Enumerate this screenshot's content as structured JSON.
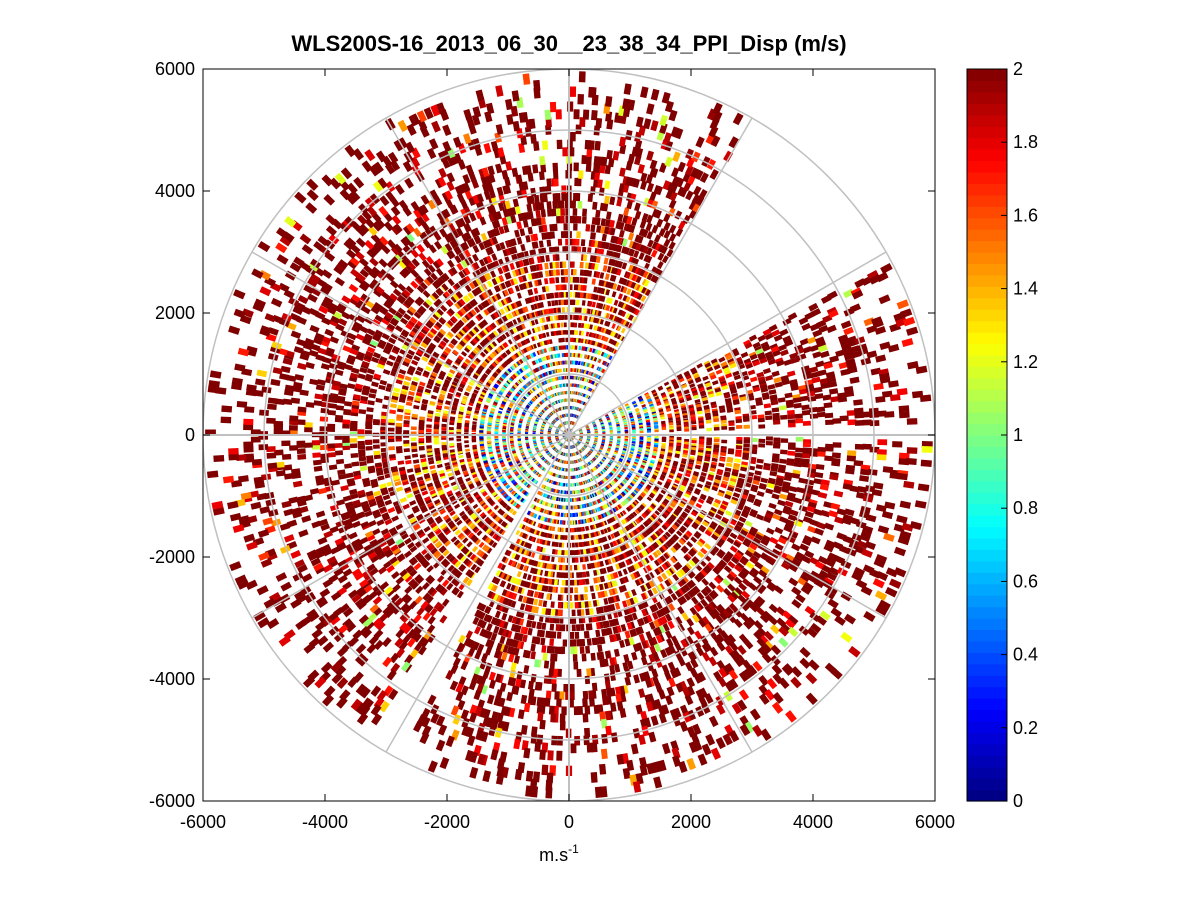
{
  "chart_data": {
    "type": "heatmap",
    "subtype": "polar PPI scan",
    "title": "WLS200S-16_2013_06_30__23_38_34_PPI_Disp (m/s)",
    "xlabel": "m.s",
    "xlabel_superscript": "-1",
    "ylabel": "",
    "xlim": [
      -6000,
      6000
    ],
    "ylim": [
      -6000,
      6000
    ],
    "xticks": [
      -6000,
      -4000,
      -2000,
      0,
      2000,
      4000,
      6000
    ],
    "yticks": [
      6000,
      4000,
      2000,
      0,
      -2000,
      -4000,
      -6000
    ],
    "xtick_labels": [
      "-6000",
      "-4000",
      "-2000",
      "0",
      "2000",
      "4000",
      "6000"
    ],
    "ytick_labels": [
      "6000",
      "4000",
      "2000",
      "0",
      "-2000",
      "-4000",
      "-6000"
    ],
    "polar_grid": {
      "ring_radii": [
        1000,
        2000,
        3000,
        4000,
        5000,
        6000
      ],
      "spoke_angles_deg": [
        0,
        30,
        60,
        90,
        120,
        150,
        180,
        210,
        240,
        270,
        300,
        330
      ],
      "max_range": 6000
    },
    "colorbar": {
      "colormap": "jet",
      "min": 0,
      "max": 2,
      "ticks": [
        2,
        1.8,
        1.6,
        1.4,
        1.2,
        1,
        0.8,
        0.6,
        0.4,
        0.2,
        0
      ],
      "tick_labels": [
        "2",
        "1.8",
        "1.6",
        "1.4",
        "1.2",
        "1",
        "0.8",
        "0.6",
        "0.4",
        "0.2",
        "0"
      ]
    },
    "data_description_values": {
      "saturated_value": 2,
      "near_range_mean": 0.9,
      "far_range_mean": 1.95,
      "gap_sectors_deg": [
        [
          30,
          62
        ],
        [
          88,
          91
        ],
        [
          208,
          214
        ]
      ]
    }
  },
  "colors": {
    "grid": "#c0c0c0",
    "axis": "#000000",
    "background": "#ffffff"
  }
}
